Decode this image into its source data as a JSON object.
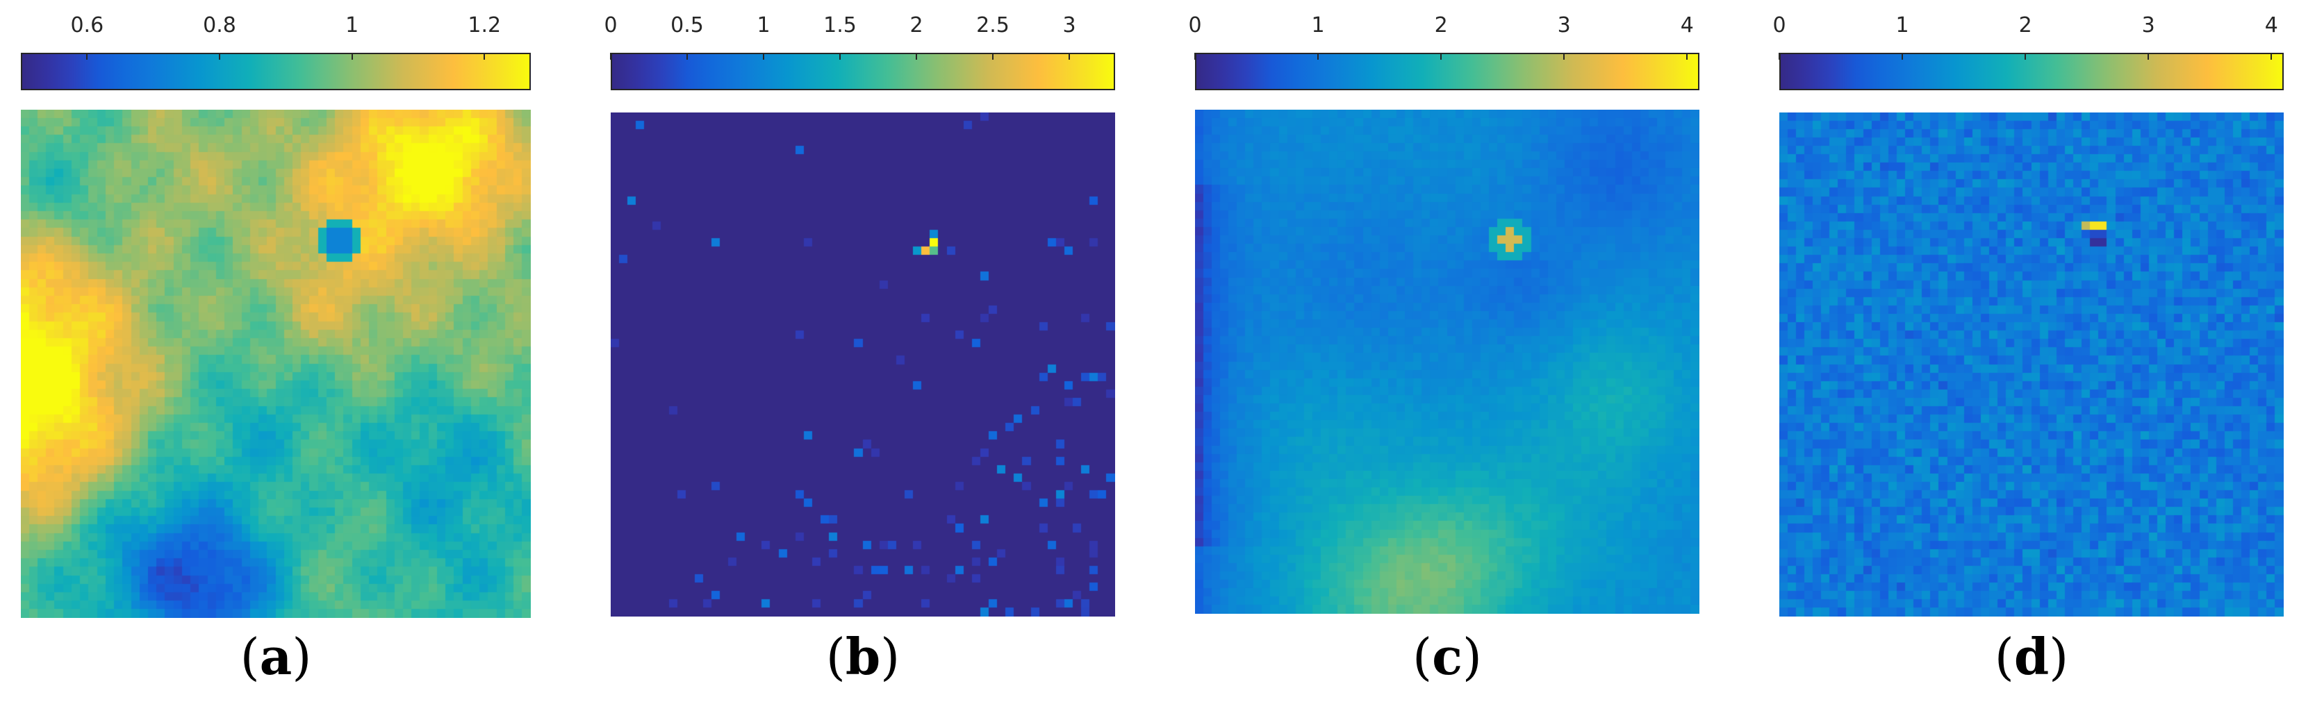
{
  "chart_data": [
    {
      "type": "heatmap",
      "panel_label": "(a)",
      "grid": [
        60,
        60
      ],
      "colormap": "parula",
      "clim": [
        0.5,
        1.27
      ],
      "colorbar_ticks": [
        0.6,
        0.8,
        1,
        1.2
      ],
      "colorbar_tick_labels": [
        "0.6",
        "0.8",
        "1",
        "1.2"
      ],
      "colorbar_location": "top",
      "features": [
        "smooth spatially-correlated field",
        "high values along left edge and top-right",
        "low values bottom-centre",
        "small low-value spot near (x=37, y=15)"
      ]
    },
    {
      "type": "heatmap",
      "panel_label": "(b)",
      "grid": [
        60,
        60
      ],
      "colormap": "parula",
      "clim": [
        0,
        3.3
      ],
      "colorbar_ticks": [
        0,
        0.5,
        1,
        1.5,
        2,
        2.5,
        3
      ],
      "colorbar_tick_labels": [
        "0",
        "0.5",
        "1",
        "1.5",
        "2",
        "2.5",
        "3"
      ],
      "colorbar_location": "top",
      "features": [
        "mostly near zero",
        "sparse small positive pixels, denser toward bottom-right",
        "bright peak ~3.3 near (x=38, y=15)"
      ]
    },
    {
      "type": "heatmap",
      "panel_label": "(c)",
      "grid": [
        60,
        60
      ],
      "colormap": "parula",
      "clim": [
        0,
        4.1
      ],
      "colorbar_ticks": [
        0,
        1,
        2,
        3,
        4
      ],
      "colorbar_tick_labels": [
        "0",
        "1",
        "2",
        "3",
        "4"
      ],
      "colorbar_location": "top",
      "features": [
        "low band along left edge",
        "low region upper-right",
        "high region bottom-centre",
        "bright spot near (x=37, y=15)"
      ]
    },
    {
      "type": "heatmap",
      "panel_label": "(d)",
      "grid": [
        60,
        60
      ],
      "colormap": "parula",
      "clim": [
        0,
        4.1
      ],
      "colorbar_ticks": [
        0,
        1,
        2,
        3,
        4
      ],
      "colorbar_tick_labels": [
        "0",
        "1",
        "2",
        "3",
        "4"
      ],
      "colorbar_location": "top",
      "features": [
        "noisy field around 1",
        "bright pixel pair near (x=37, y=13) with dark pixel below"
      ]
    }
  ],
  "captions": [
    "(a)",
    "(b)",
    "(c)",
    "(d)"
  ]
}
